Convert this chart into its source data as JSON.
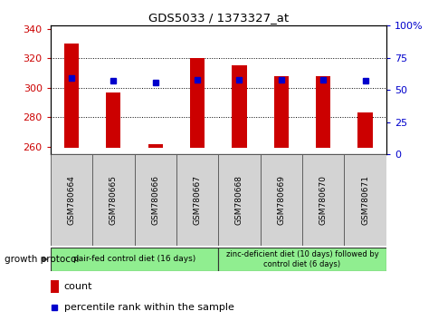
{
  "title": "GDS5033 / 1373327_at",
  "samples": [
    "GSM780664",
    "GSM780665",
    "GSM780666",
    "GSM780667",
    "GSM780668",
    "GSM780669",
    "GSM780670",
    "GSM780671"
  ],
  "count_values": [
    330,
    297,
    262,
    320,
    315,
    308,
    308,
    283
  ],
  "percentile_values": [
    59,
    57,
    56,
    58,
    58,
    58,
    58,
    57
  ],
  "count_base": 259,
  "ylim_left": [
    255,
    342
  ],
  "ylim_right": [
    0,
    100
  ],
  "yticks_left": [
    260,
    280,
    300,
    320,
    340
  ],
  "yticks_right": [
    0,
    25,
    50,
    75,
    100
  ],
  "right_tick_labels": [
    "0",
    "25",
    "50",
    "75",
    "100%"
  ],
  "bar_color": "#cc0000",
  "dot_color": "#0000cc",
  "background_plot": "#ffffff",
  "group1_label": "pair-fed control diet (16 days)",
  "group2_label": "zinc-deficient diet (10 days) followed by\ncontrol diet (6 days)",
  "group1_color": "#90ee90",
  "group2_color": "#90ee90",
  "legend_count_label": "count",
  "legend_percentile_label": "percentile rank within the sample",
  "growth_protocol_label": "growth protocol",
  "xlabel_color": "#cc0000",
  "ylabel_right_color": "#0000cc",
  "title_color": "#000000",
  "sample_bg_color": "#d3d3d3",
  "fig_width": 4.85,
  "fig_height": 3.54,
  "fig_dpi": 100
}
